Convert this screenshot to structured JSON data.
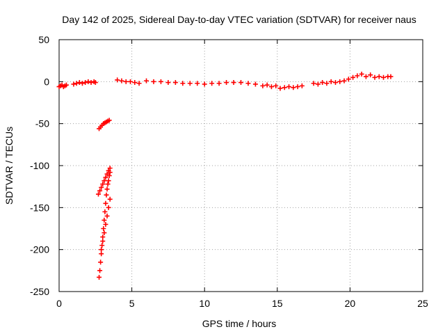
{
  "chart_data": {
    "type": "scatter",
    "title": "Day 142 of 2025, Sidereal Day-to-day VTEC variation (SDTVAR) for receiver naus",
    "xlabel": "GPS time / hours",
    "ylabel": "SDTVAR / TECUs",
    "xlim": [
      0,
      25
    ],
    "ylim": [
      -250,
      50
    ],
    "xticks": [
      0,
      5,
      10,
      15,
      20,
      25
    ],
    "yticks": [
      -250,
      -200,
      -150,
      -100,
      -50,
      0,
      50
    ],
    "xtick_labels": [
      "0",
      "5",
      "10",
      "15",
      "20",
      "25"
    ],
    "ytick_labels": [
      "-250",
      "-200",
      "-150",
      "-100",
      "-50",
      "0",
      "50"
    ],
    "grid": true,
    "marker": "+",
    "color": "#ff0000",
    "series": [
      {
        "name": "SDTVAR",
        "x": [
          0.0,
          0.1,
          0.2,
          0.3,
          0.4,
          0.5,
          1.0,
          1.2,
          1.4,
          1.6,
          1.8,
          2.0,
          2.2,
          2.4,
          2.5,
          2.75,
          2.85,
          2.95,
          3.05,
          3.15,
          3.25,
          3.35,
          3.45,
          2.7,
          2.8,
          2.9,
          3.0,
          3.1,
          3.2,
          3.3,
          3.4,
          3.5,
          2.75,
          2.8,
          2.85,
          2.9,
          2.95,
          3.0,
          3.05,
          3.1,
          3.15,
          3.2,
          3.25,
          3.3,
          3.35,
          3.4,
          3.45,
          3.5,
          2.9,
          3.0,
          3.1,
          3.2,
          3.3,
          3.4,
          3.5,
          4.0,
          4.3,
          4.6,
          4.9,
          5.2,
          5.5,
          6.0,
          6.5,
          7.0,
          7.5,
          8.0,
          8.5,
          9.0,
          9.5,
          10.0,
          10.5,
          11.0,
          11.5,
          12.0,
          12.5,
          13.0,
          13.5,
          14.0,
          14.3,
          14.6,
          14.9,
          15.2,
          15.5,
          15.8,
          16.1,
          16.4,
          16.7,
          17.5,
          17.8,
          18.1,
          18.4,
          18.7,
          19.0,
          19.3,
          19.6,
          19.9,
          20.2,
          20.5,
          20.8,
          21.1,
          21.4,
          21.7,
          22.0,
          22.3,
          22.6,
          22.8
        ],
        "y": [
          -6,
          -5,
          -4,
          -6,
          -5,
          -4,
          -3,
          -2,
          -1,
          -2,
          -1,
          0,
          -1,
          0,
          -1,
          -56,
          -54,
          -52,
          -50,
          -49,
          -48,
          -47,
          -46,
          -134,
          -130,
          -126,
          -122,
          -118,
          -114,
          -110,
          -106,
          -103,
          -233,
          -225,
          -215,
          -205,
          -195,
          -185,
          -175,
          -165,
          -155,
          -145,
          -135,
          -128,
          -122,
          -118,
          -112,
          -108,
          -200,
          -190,
          -180,
          -170,
          -160,
          -150,
          -140,
          2,
          1,
          0,
          0,
          -1,
          -2,
          1,
          0,
          0,
          -1,
          -1,
          -2,
          -2,
          -2,
          -3,
          -2,
          -2,
          -1,
          -1,
          -1,
          -2,
          -3,
          -5,
          -4,
          -6,
          -5,
          -8,
          -7,
          -6,
          -7,
          -6,
          -5,
          -2,
          -3,
          -1,
          -2,
          0,
          -1,
          0,
          1,
          3,
          5,
          7,
          9,
          6,
          8,
          5,
          6,
          5,
          6,
          6
        ]
      }
    ]
  }
}
